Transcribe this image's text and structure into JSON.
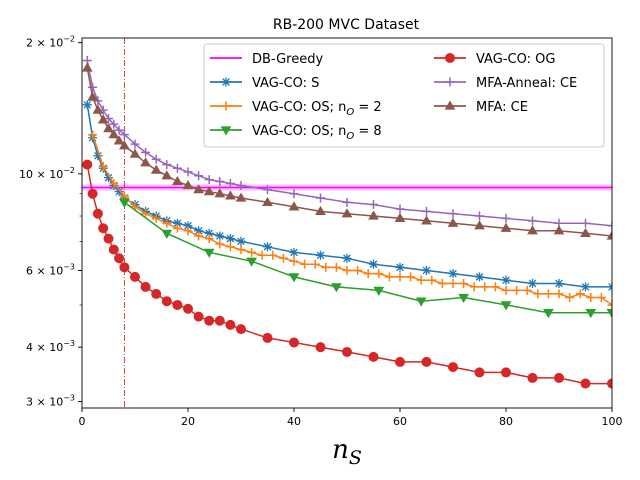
{
  "chart_data": {
    "type": "line",
    "title": "RB-200 MVC Dataset",
    "xlabel_main": "n",
    "xlabel_sub": "S",
    "ylabel": "",
    "xlim": [
      0,
      100
    ],
    "ylim": [
      0.0029,
      0.0205
    ],
    "yscale": "log",
    "xticks": [
      0,
      20,
      40,
      60,
      80,
      100
    ],
    "yticks": [
      {
        "value": 0.02,
        "mantissa": "2",
        "exponent": "−2"
      },
      {
        "value": 0.01,
        "mantissa": "10",
        "exponent": "−2"
      },
      {
        "value": 0.006,
        "mantissa": "6",
        "exponent": "−3"
      },
      {
        "value": 0.004,
        "mantissa": "4",
        "exponent": "−3"
      },
      {
        "value": 0.003,
        "mantissa": "3",
        "exponent": "−3"
      }
    ],
    "vline_x": 8,
    "hline": {
      "name": "DB-Greedy",
      "value": 0.0093,
      "band": [
        0.00915,
        0.00945
      ],
      "color": "#ff00ff"
    },
    "legend": [
      {
        "label": "DB-Greedy",
        "sub": "",
        "color": "#ff00ff",
        "marker": "none"
      },
      {
        "label": "VAG-CO: S",
        "sub": "",
        "color": "#1f77b4",
        "marker": "star"
      },
      {
        "label": "VAG-CO: OS; n",
        "sub": "O",
        "suffix": " = 2",
        "color": "#ff7f0e",
        "marker": "plus"
      },
      {
        "label": "VAG-CO: OS; n",
        "sub": "O",
        "suffix": " = 8",
        "color": "#2ca02c",
        "marker": "tri"
      },
      {
        "label": "VAG-CO: OG",
        "sub": "",
        "color": "#d62728",
        "marker": "circle"
      },
      {
        "label": "MFA-Anneal: CE",
        "sub": "",
        "color": "#9467bd",
        "marker": "plus"
      },
      {
        "label": "MFA: CE",
        "sub": "",
        "color": "#8c564b",
        "marker": "triup"
      }
    ],
    "series": [
      {
        "name": "MFA-Anneal: CE",
        "color": "#9467bd",
        "marker": "plus",
        "x": [
          1,
          2,
          3,
          4,
          5,
          6,
          7,
          8,
          10,
          12,
          14,
          16,
          18,
          20,
          22,
          24,
          26,
          28,
          30,
          35,
          40,
          45,
          50,
          55,
          60,
          65,
          70,
          75,
          80,
          85,
          90,
          95,
          100
        ],
        "values": [
          0.0182,
          0.0158,
          0.0147,
          0.014,
          0.0134,
          0.013,
          0.0126,
          0.0123,
          0.0117,
          0.0112,
          0.0108,
          0.0105,
          0.0103,
          0.0101,
          0.0099,
          0.0097,
          0.0096,
          0.0095,
          0.0094,
          0.0092,
          0.009,
          0.0088,
          0.0086,
          0.0085,
          0.0083,
          0.0082,
          0.0081,
          0.008,
          0.0079,
          0.0078,
          0.0077,
          0.0077,
          0.0076
        ]
      },
      {
        "name": "MFA: CE",
        "color": "#8c564b",
        "marker": "triup",
        "x": [
          1,
          2,
          3,
          4,
          5,
          6,
          7,
          8,
          10,
          12,
          14,
          16,
          18,
          20,
          22,
          24,
          26,
          28,
          30,
          35,
          40,
          45,
          50,
          55,
          60,
          65,
          70,
          75,
          80,
          85,
          90,
          95,
          100
        ],
        "values": [
          0.0175,
          0.015,
          0.014,
          0.0133,
          0.0127,
          0.0123,
          0.0119,
          0.0116,
          0.0111,
          0.0106,
          0.0102,
          0.0099,
          0.0096,
          0.0094,
          0.0092,
          0.0091,
          0.009,
          0.0089,
          0.0088,
          0.0086,
          0.0084,
          0.0082,
          0.0081,
          0.008,
          0.0079,
          0.0078,
          0.0077,
          0.0076,
          0.0075,
          0.0074,
          0.0074,
          0.0073,
          0.0072
        ]
      },
      {
        "name": "VAG-CO: S",
        "color": "#1f77b4",
        "marker": "star",
        "x": [
          1,
          2,
          3,
          4,
          5,
          6,
          7,
          8,
          10,
          12,
          14,
          16,
          18,
          20,
          22,
          24,
          26,
          28,
          30,
          35,
          40,
          45,
          50,
          55,
          60,
          65,
          70,
          75,
          80,
          85,
          90,
          95,
          100
        ],
        "values": [
          0.0144,
          0.0121,
          0.011,
          0.0103,
          0.0098,
          0.0094,
          0.0091,
          0.0088,
          0.0085,
          0.0082,
          0.008,
          0.0078,
          0.0077,
          0.0076,
          0.0074,
          0.0073,
          0.0072,
          0.0071,
          0.007,
          0.0068,
          0.0066,
          0.0065,
          0.0064,
          0.0062,
          0.0061,
          0.006,
          0.0059,
          0.0058,
          0.0057,
          0.0056,
          0.0056,
          0.0055,
          0.0055
        ]
      },
      {
        "name": "VAG-CO: OS; nO = 2",
        "color": "#ff7f0e",
        "marker": "plus",
        "x": [
          2,
          4,
          6,
          8,
          10,
          12,
          14,
          16,
          18,
          20,
          22,
          24,
          26,
          28,
          30,
          32,
          34,
          36,
          38,
          40,
          42,
          44,
          46,
          48,
          50,
          52,
          54,
          56,
          58,
          60,
          62,
          64,
          66,
          68,
          70,
          72,
          74,
          76,
          78,
          80,
          82,
          84,
          86,
          88,
          90,
          92,
          94,
          96,
          98,
          100
        ],
        "values": [
          0.0123,
          0.0104,
          0.0095,
          0.0089,
          0.0084,
          0.0081,
          0.0079,
          0.0077,
          0.0075,
          0.0074,
          0.0072,
          0.0071,
          0.0069,
          0.0068,
          0.0067,
          0.0066,
          0.0065,
          0.0065,
          0.0064,
          0.0063,
          0.0062,
          0.0062,
          0.0061,
          0.0061,
          0.006,
          0.006,
          0.0059,
          0.0059,
          0.0058,
          0.0058,
          0.0058,
          0.0057,
          0.0057,
          0.0056,
          0.0056,
          0.0056,
          0.0055,
          0.0055,
          0.0055,
          0.0054,
          0.0054,
          0.0054,
          0.0053,
          0.0053,
          0.0053,
          0.0052,
          0.0053,
          0.0052,
          0.0052,
          0.005
        ]
      },
      {
        "name": "VAG-CO: OS; nO = 8",
        "color": "#2ca02c",
        "marker": "tri",
        "x": [
          8,
          16,
          24,
          32,
          40,
          48,
          56,
          64,
          72,
          80,
          88,
          96,
          100
        ],
        "values": [
          0.0086,
          0.0073,
          0.0066,
          0.0063,
          0.0058,
          0.0055,
          0.0054,
          0.0051,
          0.0052,
          0.005,
          0.0048,
          0.0048,
          0.0048
        ]
      },
      {
        "name": "VAG-CO: OG",
        "color": "#d62728",
        "marker": "circle",
        "x": [
          1,
          2,
          3,
          4,
          5,
          6,
          7,
          8,
          10,
          12,
          14,
          16,
          18,
          20,
          22,
          24,
          26,
          28,
          30,
          35,
          40,
          45,
          50,
          55,
          60,
          65,
          70,
          75,
          80,
          85,
          90,
          95,
          100
        ],
        "values": [
          0.0105,
          0.009,
          0.0081,
          0.0075,
          0.0071,
          0.0067,
          0.0064,
          0.0061,
          0.0058,
          0.0055,
          0.0053,
          0.0051,
          0.005,
          0.0049,
          0.0047,
          0.0046,
          0.0046,
          0.0045,
          0.0044,
          0.0042,
          0.0041,
          0.004,
          0.0039,
          0.0038,
          0.0037,
          0.0037,
          0.0036,
          0.0035,
          0.0035,
          0.0034,
          0.0034,
          0.0033,
          0.0033
        ]
      }
    ]
  }
}
